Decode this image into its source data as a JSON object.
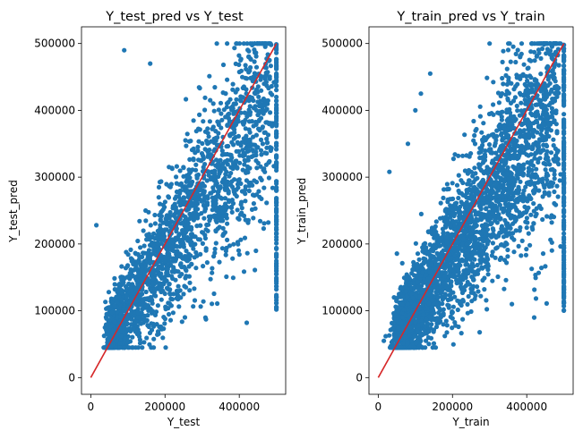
{
  "colors": {
    "scatter": "#1f77b4",
    "identity_line": "#d62728",
    "axes": "#000000",
    "background": "#ffffff"
  },
  "chart_data": [
    {
      "type": "scatter",
      "title": "Y_test_pred vs Y_test",
      "xlabel": "Y_test",
      "ylabel": "Y_test_pred",
      "xlim": [
        -25000,
        525000
      ],
      "ylim": [
        -25000,
        525000
      ],
      "xticks": [
        0,
        200000,
        400000
      ],
      "xtick_labels": [
        "0",
        "200000",
        "400000"
      ],
      "yticks": [
        0,
        100000,
        200000,
        300000,
        400000,
        500000
      ],
      "ytick_labels": [
        "0",
        "100000",
        "200000",
        "300000",
        "400000",
        "500000"
      ],
      "identity_line": {
        "x": [
          0,
          500001
        ],
        "y": [
          0,
          500001
        ]
      },
      "outliers": [
        [
          15000,
          228000
        ],
        [
          90000,
          490000
        ],
        [
          430000,
          500000
        ],
        [
          100000,
          90000
        ],
        [
          45000,
          65000
        ],
        [
          160000,
          470000
        ],
        [
          420000,
          82000
        ],
        [
          250000,
          125000
        ],
        [
          330000,
          410000
        ],
        [
          60000,
          50000
        ]
      ],
      "sample_points": 2200,
      "seed": 11
    },
    {
      "type": "scatter",
      "title": "Y_train_pred vs Y_train",
      "xlabel": "Y_train",
      "ylabel": "Y_train_pred",
      "xlim": [
        -25000,
        525000
      ],
      "ylim": [
        -25000,
        525000
      ],
      "xticks": [
        0,
        200000,
        400000
      ],
      "xtick_labels": [
        "0",
        "200000",
        "400000"
      ],
      "yticks": [
        0,
        100000,
        200000,
        300000,
        400000,
        500000
      ],
      "ytick_labels": [
        "0",
        "100000",
        "200000",
        "300000",
        "400000",
        "500000"
      ],
      "identity_line": {
        "x": [
          0,
          500001
        ],
        "y": [
          0,
          500001
        ]
      },
      "outliers": [
        [
          30000,
          308000
        ],
        [
          115000,
          425000
        ],
        [
          100000,
          400000
        ],
        [
          140000,
          455000
        ],
        [
          300000,
          500000
        ],
        [
          420000,
          90000
        ],
        [
          360000,
          110000
        ],
        [
          80000,
          350000
        ],
        [
          20000,
          62000
        ],
        [
          15000,
          55000
        ]
      ],
      "sample_points": 3200,
      "seed": 29
    }
  ]
}
